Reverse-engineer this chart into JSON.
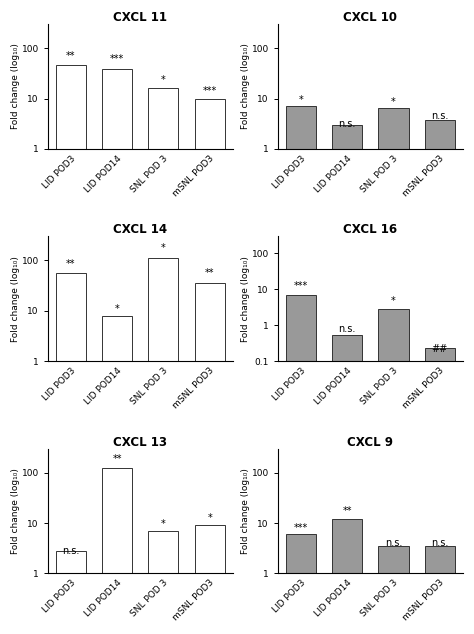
{
  "panels": [
    {
      "title": "CXCL 11",
      "bar_color": "#ffffff",
      "bar_edge": "#333333",
      "ylim": [
        1,
        100
      ],
      "yticks": [
        1,
        10,
        100
      ],
      "yticklabels": [
        "1",
        "10",
        "100"
      ],
      "values": [
        45,
        38,
        15,
        9
      ],
      "labels": [
        "LID POD3",
        "LID POD14",
        "SNL POD 3",
        "mSNL POD3"
      ],
      "annotations": [
        "**",
        "***",
        "*",
        "***"
      ],
      "ylabel": "Fold change (log₁₀)"
    },
    {
      "title": "CXCL 10",
      "bar_color": "#999999",
      "bar_edge": "#333333",
      "ylim": [
        1,
        100
      ],
      "yticks": [
        1,
        10,
        100
      ],
      "yticklabels": [
        "1",
        "10",
        "100"
      ],
      "values": [
        6.0,
        2.0,
        5.5,
        2.8
      ],
      "labels": [
        "LID POD3",
        "LID POD14",
        "SNL POD 3",
        "mSNL POD3"
      ],
      "annotations": [
        "*",
        "n.s.",
        "*",
        "n.s."
      ],
      "ylabel": "Fold change (log₁₀)"
    },
    {
      "title": "CXCL 14",
      "bar_color": "#ffffff",
      "bar_edge": "#333333",
      "ylim": [
        1,
        100
      ],
      "yticks": [
        1,
        10,
        100
      ],
      "yticklabels": [
        "1",
        "10",
        "100"
      ],
      "values": [
        55,
        7,
        110,
        35
      ],
      "labels": [
        "LID POD3",
        "LID POD14",
        "SNL POD 3",
        "mSNL POD3"
      ],
      "annotations": [
        "**",
        "*",
        "*",
        "**"
      ],
      "ylabel": "Fold change (log₁₀)"
    },
    {
      "title": "CXCL 16",
      "bar_color": "#999999",
      "bar_edge": "#333333",
      "ylim": [
        0.1,
        100
      ],
      "yticks": [
        0.1,
        1,
        10,
        100
      ],
      "yticklabels": [
        "0.1",
        "1",
        "10",
        "100"
      ],
      "values": [
        7.0,
        0.45,
        2.8,
        0.13
      ],
      "labels": [
        "LID POD3",
        "LID POD14",
        "SNL POD 3",
        "mSNL POD3"
      ],
      "annotations": [
        "***",
        "n.s.",
        "*",
        "##"
      ],
      "ylabel": "Fold change (log₁₀)"
    },
    {
      "title": "CXCL 13",
      "bar_color": "#ffffff",
      "bar_edge": "#333333",
      "ylim": [
        1,
        100
      ],
      "yticks": [
        1,
        10,
        100
      ],
      "yticklabels": [
        "1",
        "10",
        "100"
      ],
      "values": [
        1.8,
        120,
        6,
        8
      ],
      "labels": [
        "LID POD3",
        "LID POD14",
        "SNL POD 3",
        "mSNL POD3"
      ],
      "annotations": [
        "n.s.",
        "**",
        "*",
        "*"
      ],
      "ylabel": "Fold change (log₁₀)"
    },
    {
      "title": "CXCL 9",
      "bar_color": "#999999",
      "bar_edge": "#333333",
      "ylim": [
        1,
        100
      ],
      "yticks": [
        1,
        10,
        100
      ],
      "yticklabels": [
        "1",
        "10",
        "100"
      ],
      "values": [
        5.0,
        11.0,
        2.5,
        2.5
      ],
      "labels": [
        "LID POD3",
        "LID POD14",
        "SNL POD 3",
        "mSNL POD3"
      ],
      "annotations": [
        "***",
        "**",
        "n.s.",
        "n.s."
      ],
      "ylabel": "Fold change (log₁₀)"
    }
  ],
  "grid_rows": 3,
  "grid_cols": 2,
  "fig_width": 4.74,
  "fig_height": 6.34,
  "background_color": "#ffffff",
  "title_fontsize": 8.5,
  "label_fontsize": 6.5,
  "annot_fontsize": 7,
  "tick_fontsize": 6.5
}
